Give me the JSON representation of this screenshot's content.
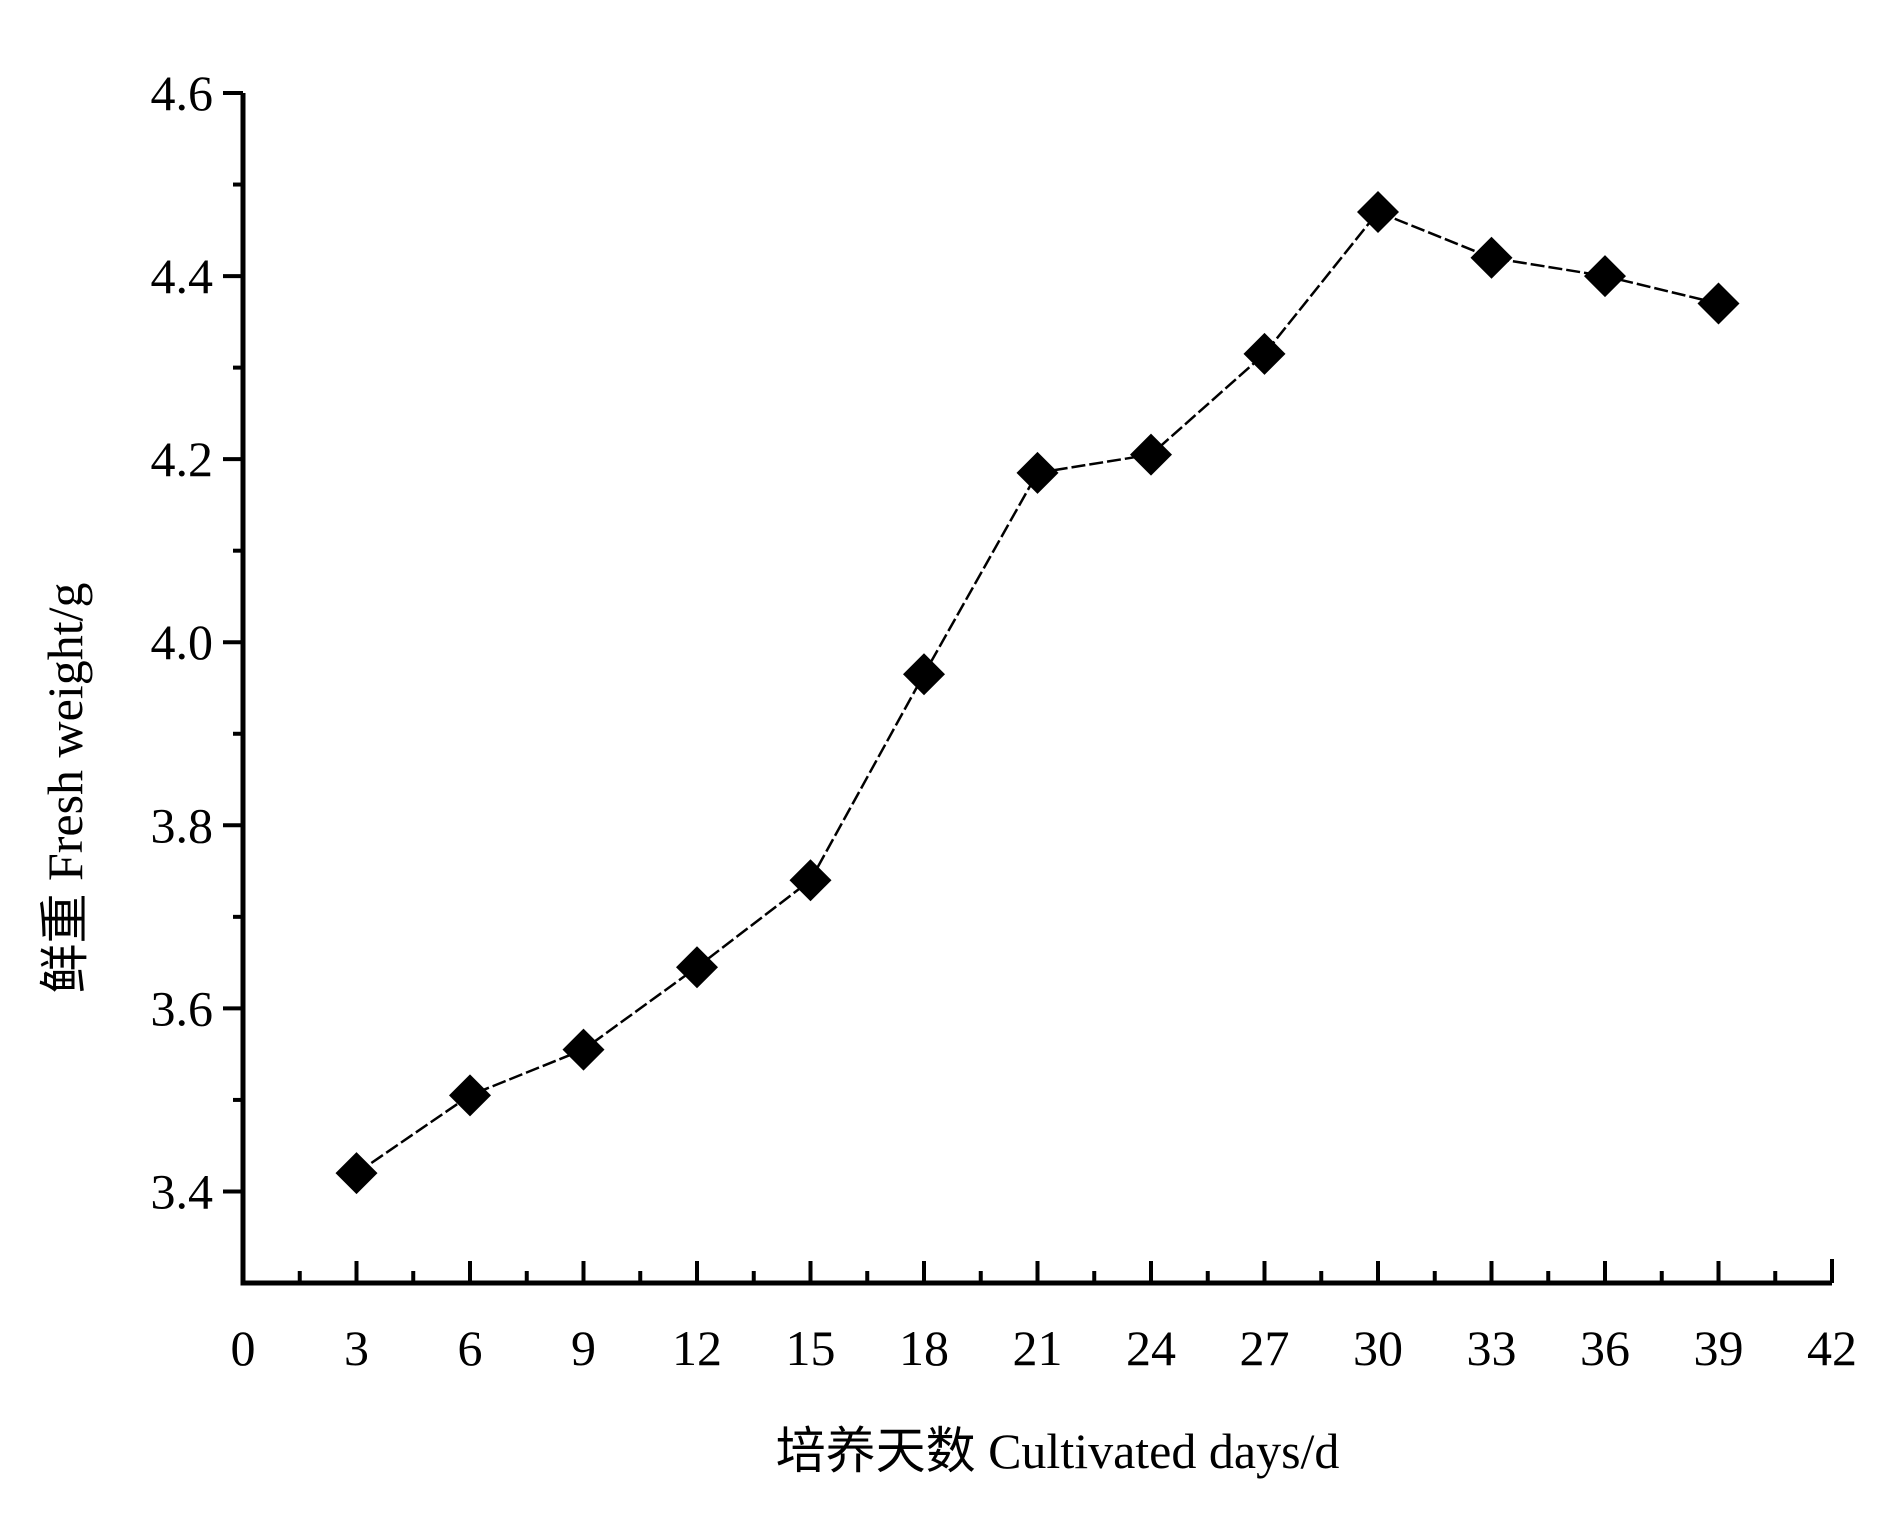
{
  "chart_data": {
    "type": "line",
    "xlabel": "培养天数 Cultivated days/d",
    "ylabel": "鲜重 Fresh weight/g",
    "xlim": [
      0,
      42
    ],
    "ylim": [
      3.3,
      4.6
    ],
    "x_ticks": [
      "0",
      "3",
      "6",
      "9",
      "12",
      "15",
      "18",
      "21",
      "24",
      "27",
      "30",
      "33",
      "36",
      "39",
      "42"
    ],
    "y_ticks": [
      "3.4",
      "3.6",
      "3.8",
      "4.0",
      "4.2",
      "4.4",
      "4.6"
    ],
    "grid": false,
    "marker": "diamond",
    "series": [
      {
        "x": [
          3,
          6,
          9,
          12,
          15,
          18,
          21,
          24,
          27,
          30,
          33,
          36,
          39
        ],
        "values": [
          3.42,
          3.505,
          3.555,
          3.645,
          3.74,
          3.965,
          4.185,
          4.205,
          4.315,
          4.47,
          4.42,
          4.4,
          4.37
        ]
      }
    ]
  }
}
